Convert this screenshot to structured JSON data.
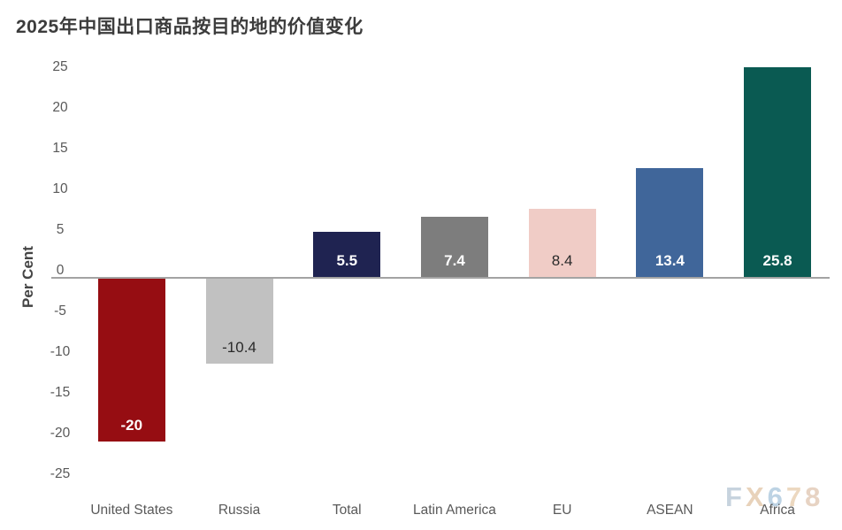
{
  "page": {
    "background": "#ffffff",
    "watermark": {
      "text": "FX678",
      "letter_colors": [
        "#c7d3de",
        "#e8d2ba",
        "#bdd3e4",
        "#ecd8c0",
        "#e7d3c3"
      ]
    }
  },
  "chart_data": {
    "type": "bar",
    "title": "2025年中国出口商品按目的地的价值变化",
    "xlabel": "",
    "ylabel": "Per Cent",
    "ylim": [
      -25,
      25
    ],
    "y_ticks": [
      25,
      20,
      15,
      10,
      5,
      0,
      -5,
      -10,
      -15,
      -20,
      -25
    ],
    "grid": false,
    "legend": "none",
    "categories": [
      "United States",
      "Russia",
      "Total",
      "Latin America",
      "EU",
      "ASEAN",
      "Africa"
    ],
    "values": [
      -20,
      -10.4,
      5.5,
      7.4,
      8.4,
      13.4,
      25.8
    ],
    "value_labels": [
      "-20",
      "-10.4",
      "5.5",
      "7.4",
      "8.4",
      "13.4",
      "25.8"
    ],
    "bar_colors": [
      "#960d12",
      "#c1c1c1",
      "#1f2351",
      "#7d7d7d",
      "#f0ccc6",
      "#40669a",
      "#0a5a52"
    ],
    "value_label_colors": [
      "#ffffff",
      "#2a2a2a",
      "#ffffff",
      "#ffffff",
      "#2a2a2a",
      "#ffffff",
      "#ffffff"
    ],
    "axis_line_color": "#a3a3a3",
    "axis_text_color": "#595959"
  }
}
